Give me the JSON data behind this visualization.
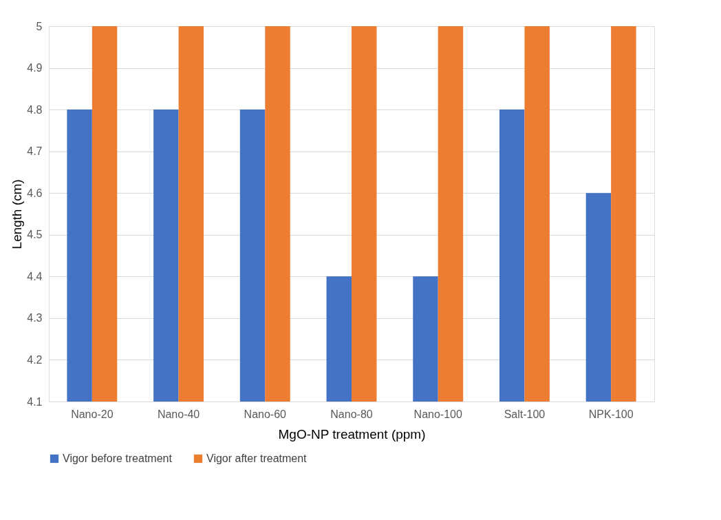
{
  "chart_data": {
    "type": "bar",
    "xlabel": "MgO-NP treatment (ppm)",
    "ylabel": "Length (cm)",
    "categories": [
      "Nano-20",
      "Nano-40",
      "Nano-60",
      "Nano-80",
      "Nano-100",
      "Salt-100",
      "NPK-100"
    ],
    "series": [
      {
        "name": "Vigor before treatment",
        "color": "#4472c4",
        "values": [
          4.8,
          4.8,
          4.8,
          4.4,
          4.4,
          4.8,
          4.6
        ]
      },
      {
        "name": "Vigor after treatment",
        "color": "#ed7d31",
        "values": [
          5,
          5,
          5,
          5,
          5,
          5,
          5
        ]
      }
    ],
    "ylim": [
      4.1,
      5
    ],
    "yticks": [
      4.1,
      4.2,
      4.3,
      4.4,
      4.5,
      4.6,
      4.7,
      4.8,
      4.9,
      5
    ],
    "grid": "y",
    "legend": "bottom"
  }
}
